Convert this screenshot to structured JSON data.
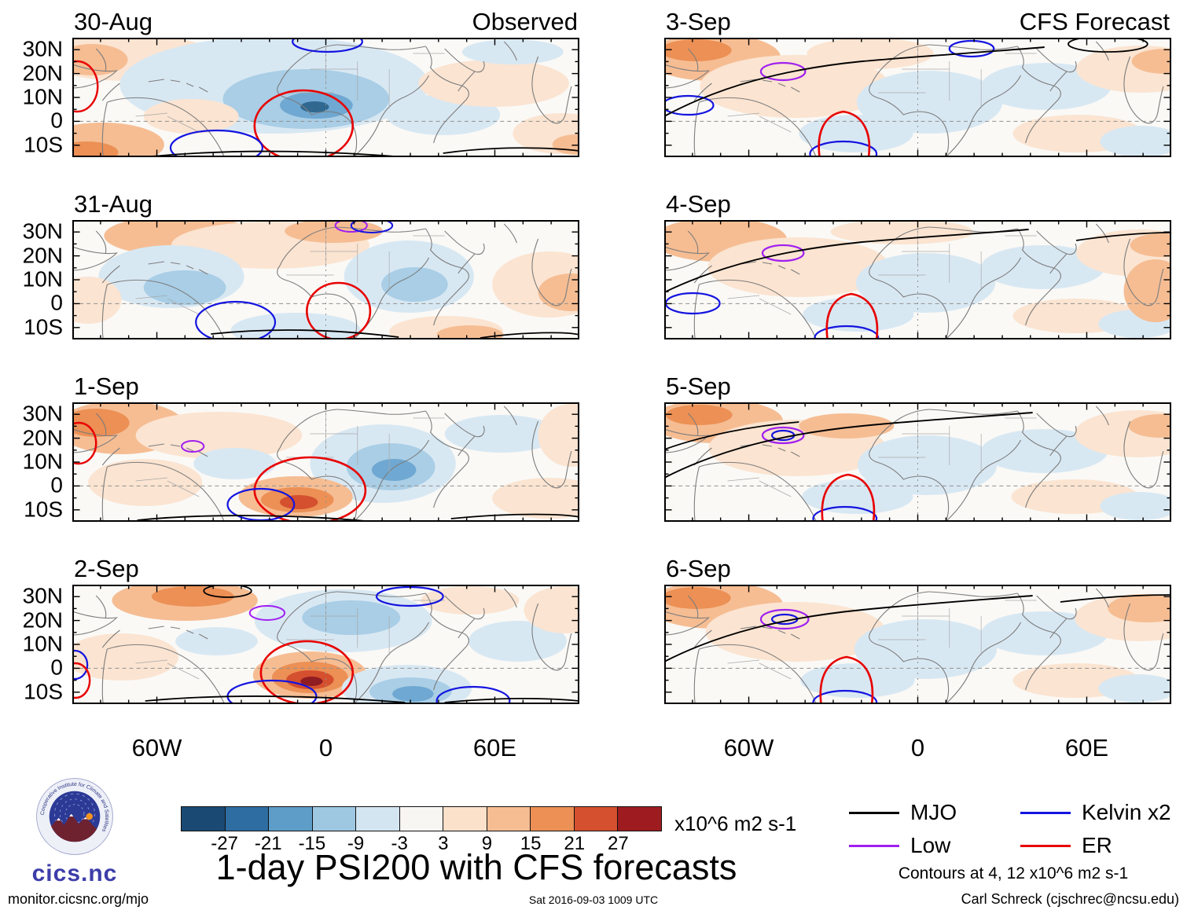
{
  "header": {
    "observed": "Observed",
    "forecast": "CFS Forecast"
  },
  "panels": {
    "left": [
      {
        "date": "30-Aug"
      },
      {
        "date": "31-Aug"
      },
      {
        "date": "1-Sep"
      },
      {
        "date": "2-Sep"
      }
    ],
    "right": [
      {
        "date": "3-Sep"
      },
      {
        "date": "4-Sep"
      },
      {
        "date": "5-Sep"
      },
      {
        "date": "6-Sep"
      }
    ]
  },
  "axes": {
    "y_ticks": [
      "30N",
      "20N",
      "10N",
      "0",
      "10S"
    ],
    "x_ticks": [
      "60W",
      "0",
      "60E"
    ]
  },
  "colorbar": {
    "tick_labels": [
      "-27",
      "-21",
      "-15",
      "-9",
      "-3",
      "3",
      "9",
      "15",
      "21",
      "27"
    ],
    "colors": [
      "#1a4a74",
      "#2d6da1",
      "#5e9dc8",
      "#9ec7e2",
      "#d3e5f0",
      "#f8f6f2",
      "#fbe0ca",
      "#f6bd93",
      "#ec9055",
      "#d4502e",
      "#9e1c20"
    ],
    "units": "x10^6 m2 s-1"
  },
  "title": "1-day PSI200 with CFS forecasts",
  "legend": {
    "items": [
      {
        "label": "MJO",
        "color": "#000000"
      },
      {
        "label": "Kelvin x2",
        "color": "#1414e0"
      },
      {
        "label": "Low",
        "color": "#a020f0"
      },
      {
        "label": "ER",
        "color": "#e80000"
      }
    ],
    "note": "Contours at 4, 12 x10^6 m2 s-1"
  },
  "logo": {
    "text": "cics.nc",
    "ring_text": "Cooperative Institute for Climate and Satellites"
  },
  "footer": {
    "left": "monitor.cicsnc.org/mjo",
    "center": "Sat 2016-09-03 1009 UTC",
    "right": "Carl Schreck (cjschrec@ncsu.edu)"
  },
  "chart_data": {
    "type": "heatmap",
    "subtype": "filled_contour_world_maps",
    "title": "1-day PSI200 with CFS forecasts",
    "variable": "200 hPa streamfunction (PSI200) anomalies",
    "units": "x10^6 m2 s-1",
    "columns": [
      {
        "label": "Observed",
        "dates": [
          "30-Aug",
          "31-Aug",
          "1-Sep",
          "2-Sep"
        ]
      },
      {
        "label": "CFS Forecast",
        "dates": [
          "3-Sep",
          "4-Sep",
          "5-Sep",
          "6-Sep"
        ]
      }
    ],
    "lat_tick_labels": [
      "30N",
      "20N",
      "10N",
      "0",
      "10S"
    ],
    "lon_tick_labels": [
      "60W",
      "0",
      "60E"
    ],
    "shading_levels": [
      -27,
      -21,
      -15,
      -9,
      -3,
      3,
      9,
      15,
      21,
      27
    ],
    "contour_levels": [
      4,
      12
    ],
    "contour_sets": [
      {
        "name": "MJO",
        "color": "black"
      },
      {
        "name": "Low",
        "color": "purple"
      },
      {
        "name": "Kelvin x2",
        "color": "blue"
      },
      {
        "name": "ER",
        "color": "red"
      }
    ],
    "timestamp": "Sat 2016-09-03 1009 UTC"
  }
}
